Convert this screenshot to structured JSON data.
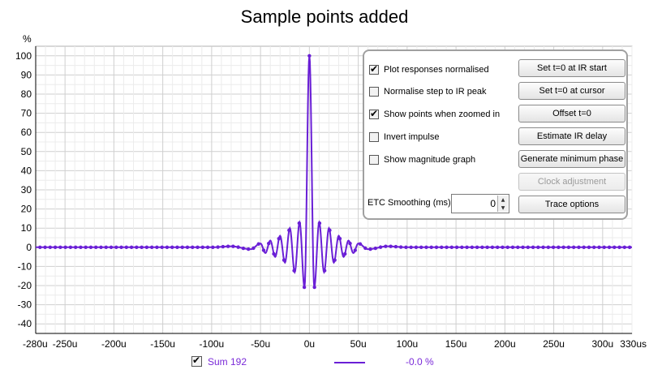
{
  "title": "Sample points added",
  "y_unit": "%",
  "colors": {
    "trace": "#6a1fd6",
    "legend_text": "#7a2ad8",
    "grid": "#d8d8d8",
    "axis": "#000000"
  },
  "options": {
    "checkboxes": [
      {
        "label": "Plot responses normalised",
        "checked": true
      },
      {
        "label": "Normalise step to IR peak",
        "checked": false
      },
      {
        "label": "Show points when zoomed in",
        "checked": true
      },
      {
        "label": "Invert impulse",
        "checked": false
      },
      {
        "label": "Show magnitude graph",
        "checked": false
      }
    ],
    "buttons": [
      {
        "label": "Set t=0 at IR start",
        "enabled": true
      },
      {
        "label": "Set t=0 at cursor",
        "enabled": true
      },
      {
        "label": "Offset t=0",
        "enabled": true
      },
      {
        "label": "Estimate IR delay",
        "enabled": true
      },
      {
        "label": "Generate minimum phase",
        "enabled": true
      },
      {
        "label": "Clock adjustment",
        "enabled": false
      },
      {
        "label": "Trace options",
        "enabled": true
      }
    ],
    "etc_smoothing_label": "ETC Smoothing (ms):",
    "etc_smoothing_value": "0"
  },
  "legend": {
    "name": "Sum 192",
    "checked": true,
    "value": "-0.0 %"
  },
  "chart_data": {
    "type": "line",
    "xlim": [
      -280,
      330
    ],
    "ylim": [
      -45,
      105
    ],
    "x_unit": "us",
    "x_tick_labels": [
      "-280u",
      "-250u",
      "-200u",
      "-150u",
      "-100u",
      "-50u",
      "0u",
      "50u",
      "100u",
      "150u",
      "200u",
      "250u",
      "300u",
      "330us"
    ],
    "x_ticks": [
      -280,
      -250,
      -200,
      -150,
      -100,
      -50,
      0,
      50,
      100,
      150,
      200,
      250,
      300,
      330
    ],
    "y_ticks": [
      100,
      90,
      80,
      70,
      60,
      50,
      40,
      30,
      20,
      10,
      0,
      -10,
      -20,
      -30,
      -40
    ],
    "grid": true,
    "sample_interval_us": 5.2,
    "series": [
      {
        "name": "Sum 192",
        "x": [
          -280,
          -100,
          -80,
          -60,
          -50,
          -45,
          -40,
          -35,
          -30,
          -25,
          -20,
          -15,
          -10,
          -5,
          0,
          5,
          10,
          15,
          20,
          25,
          30,
          35,
          40,
          45,
          50,
          60,
          80,
          100,
          330
        ],
        "y": [
          0,
          0,
          0.5,
          -1,
          2,
          -3,
          3.5,
          -5,
          6,
          -8,
          10,
          -13,
          13,
          -21,
          100,
          -21,
          13,
          -13,
          10,
          -8,
          6,
          -5,
          3.5,
          -3,
          2,
          -1,
          0.5,
          0,
          0
        ]
      }
    ]
  }
}
